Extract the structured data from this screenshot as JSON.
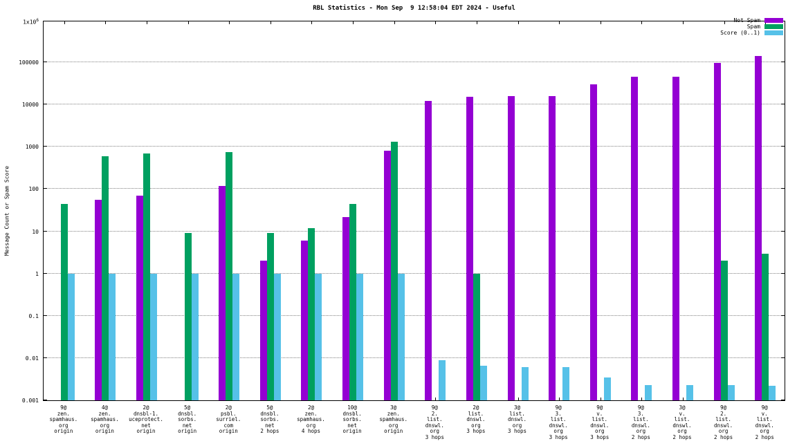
{
  "chart_data": {
    "type": "bar",
    "title": "RBL Statistics - Mon Sep  9 12:58:04 EDT 2024 - Useful",
    "xlabel": "",
    "ylabel": "Message Count or Spam Score",
    "yscale": "log",
    "ylim": [
      0.001,
      1000000
    ],
    "ytick_labels": [
      "0.001",
      "0.01",
      "0.1",
      "1",
      "10",
      "100",
      "1000",
      "10000",
      "100000",
      "1x10^6"
    ],
    "grid": true,
    "legend_position": "top-right",
    "categories": [
      [
        "9@",
        "zen.",
        "spamhaus.",
        "org",
        "origin"
      ],
      [
        "4@",
        "zen.",
        "spamhaus.",
        "org",
        "origin"
      ],
      [
        "2@",
        "dnsbl-1.",
        "uceprotect.",
        "net",
        "origin"
      ],
      [
        "5@",
        "dnsbl.",
        "sorbs.",
        "net",
        "origin"
      ],
      [
        "2@",
        "psbl.",
        "surriel.",
        "com",
        "origin"
      ],
      [
        "5@",
        "dnsbl.",
        "sorbs.",
        "net",
        "2 hops"
      ],
      [
        "2@",
        "zen.",
        "spamhaus.",
        "org",
        "4 hops"
      ],
      [
        "10@",
        "dnsbl.",
        "sorbs.",
        "net",
        "origin"
      ],
      [
        "3@",
        "zen.",
        "spamhaus.",
        "org",
        "origin"
      ],
      [
        "9@",
        "2.",
        "list.",
        "dnswl.",
        "org",
        "3 hops"
      ],
      [
        "2@",
        "list.",
        "dnswl.",
        "org",
        "3 hops"
      ],
      [
        "3@",
        "list.",
        "dnswl.",
        "org",
        "3 hops"
      ],
      [
        "9@",
        "3.",
        "list.",
        "dnswl.",
        "org",
        "3 hops"
      ],
      [
        "9@",
        "v.",
        "list.",
        "dnswl.",
        "org",
        "3 hops"
      ],
      [
        "9@",
        "3.",
        "list.",
        "dnswl.",
        "org",
        "2 hops"
      ],
      [
        "3@",
        "v.",
        "list.",
        "dnswl.",
        "org",
        "2 hops"
      ],
      [
        "9@",
        "2.",
        "list.",
        "dnswl.",
        "org",
        "2 hops"
      ],
      [
        "9@",
        "v.",
        "list.",
        "dnswl.",
        "org",
        "2 hops"
      ]
    ],
    "series": [
      {
        "name": "Not Spam",
        "color": "#9400d3",
        "values": [
          null,
          55,
          70,
          null,
          120,
          2,
          6,
          22,
          800,
          12000,
          15000,
          16000,
          16000,
          30000,
          45000,
          45000,
          95000,
          140000
        ]
      },
      {
        "name": "Spam",
        "color": "#00a060",
        "values": [
          45,
          600,
          700,
          9,
          750,
          9,
          12,
          45,
          1300,
          null,
          1,
          null,
          null,
          null,
          null,
          null,
          2,
          3
        ]
      },
      {
        "name": "Score (0..1)",
        "color": "#56c1e8",
        "values": [
          1,
          1,
          1,
          1,
          1,
          1,
          1,
          1,
          1,
          0.009,
          0.0065,
          0.006,
          0.006,
          0.0035,
          0.0023,
          0.0023,
          0.0023,
          0.0022
        ]
      }
    ]
  }
}
